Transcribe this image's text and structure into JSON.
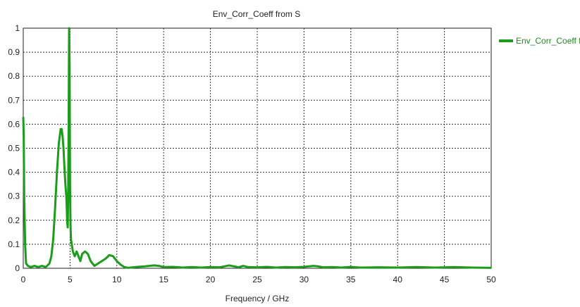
{
  "chart_data": {
    "type": "line",
    "title": "Env_Corr_Coeff from S",
    "xlabel": "Frequency / GHz",
    "ylabel": "",
    "xlim": [
      0,
      50
    ],
    "ylim": [
      0,
      1
    ],
    "xticks": [
      0,
      5,
      10,
      15,
      20,
      25,
      30,
      35,
      40,
      45,
      50
    ],
    "yticks": [
      0,
      0.1,
      0.2,
      0.3,
      0.4,
      0.5,
      0.6,
      0.7,
      0.8,
      0.9,
      1
    ],
    "grid": true,
    "legend_position": "right",
    "series": [
      {
        "name": "Env_Corr_Coeff from",
        "color": "#1a9e1a",
        "x": [
          0,
          0.05,
          0.1,
          0.2,
          0.3,
          0.5,
          0.8,
          1.2,
          1.6,
          2.0,
          2.4,
          2.8,
          3.0,
          3.2,
          3.4,
          3.6,
          3.8,
          4.0,
          4.1,
          4.2,
          4.3,
          4.4,
          4.5,
          4.6,
          4.65,
          4.7,
          4.75,
          4.8,
          4.85,
          4.9,
          4.95,
          5.0,
          5.05,
          5.1,
          5.3,
          5.5,
          5.7,
          5.9,
          6.1,
          6.3,
          6.6,
          6.9,
          7.2,
          7.6,
          8.0,
          8.4,
          8.8,
          9.2,
          9.6,
          10.0,
          10.4,
          10.8,
          11.2,
          12.0,
          13.0,
          14.0,
          14.5,
          15.0,
          16.0,
          17.0,
          18.0,
          19.0,
          20.0,
          21.0,
          22.0,
          22.5,
          23.0,
          23.5,
          24.0,
          25.0,
          26.0,
          27.0,
          28.0,
          29.0,
          30.0,
          31.0,
          31.5,
          32.0,
          33.0,
          34.0,
          35.0,
          36.0,
          38.0,
          40.0,
          42.0,
          44.0,
          46.0,
          48.0,
          50.0
        ],
        "y": [
          0.63,
          0.55,
          0.3,
          0.1,
          0.02,
          0.01,
          0.005,
          0.01,
          0.005,
          0.01,
          0.005,
          0.02,
          0.05,
          0.12,
          0.25,
          0.4,
          0.52,
          0.58,
          0.58,
          0.55,
          0.5,
          0.42,
          0.35,
          0.3,
          0.25,
          0.19,
          0.17,
          0.3,
          0.6,
          1.0,
          0.85,
          0.35,
          0.18,
          0.12,
          0.07,
          0.05,
          0.07,
          0.05,
          0.03,
          0.06,
          0.07,
          0.06,
          0.03,
          0.01,
          0.02,
          0.03,
          0.04,
          0.055,
          0.05,
          0.03,
          0.015,
          0.005,
          0.002,
          0.005,
          0.008,
          0.012,
          0.01,
          0.005,
          0.006,
          0.003,
          0.005,
          0.003,
          0.005,
          0.004,
          0.012,
          0.008,
          0.004,
          0.01,
          0.005,
          0.004,
          0.006,
          0.003,
          0.005,
          0.004,
          0.006,
          0.01,
          0.008,
          0.004,
          0.005,
          0.003,
          0.006,
          0.003,
          0.004,
          0.003,
          0.005,
          0.003,
          0.005,
          0.003,
          0.002
        ]
      }
    ]
  }
}
